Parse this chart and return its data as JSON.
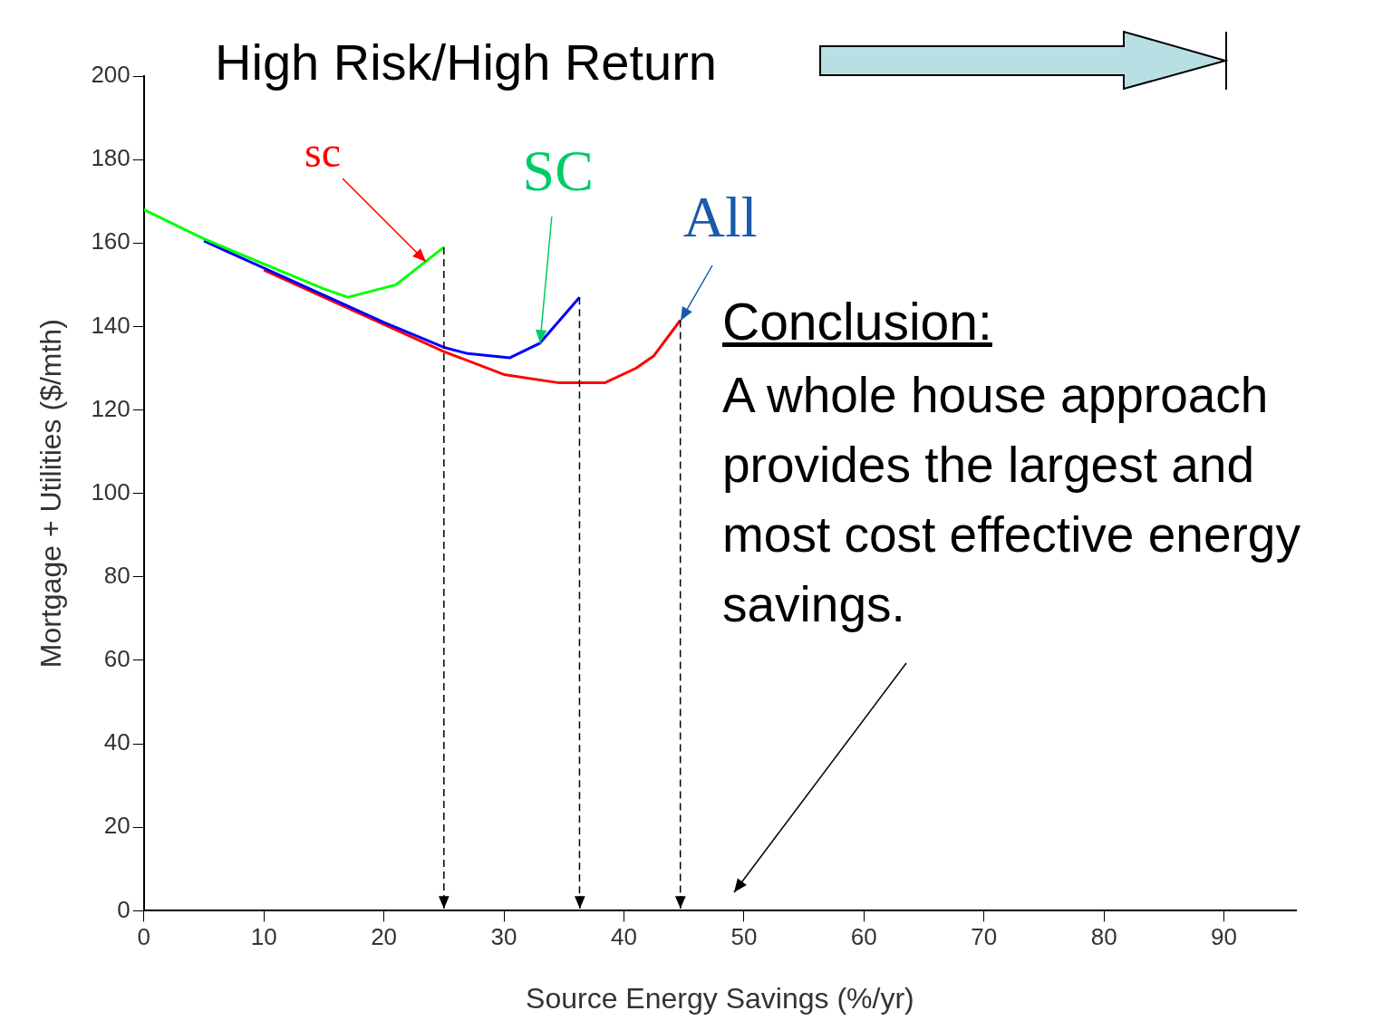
{
  "chart_data": {
    "type": "line",
    "xlabel": "Source Energy Savings (%/yr)",
    "ylabel": "Mortgage + Utilities ($/mth)",
    "xlim": [
      0,
      96
    ],
    "xticks": [
      0,
      10,
      20,
      30,
      40,
      50,
      60,
      70,
      80,
      90
    ],
    "ylim": [
      0,
      200
    ],
    "yticks": [
      0,
      20,
      40,
      60,
      80,
      100,
      120,
      140,
      160,
      180,
      200
    ],
    "grid": false,
    "legend": false,
    "marker": "none",
    "line_style": "solid",
    "series": [
      {
        "color": "#00ff00",
        "x": [
          0,
          5,
          10,
          15,
          17,
          21,
          25
        ],
        "values": [
          168,
          161,
          155,
          149,
          147,
          150,
          159
        ]
      },
      {
        "color": "#0000ff",
        "x": [
          5,
          10,
          15,
          20,
          25,
          27,
          30.5,
          33,
          36.3
        ],
        "values": [
          160.5,
          154,
          147.5,
          141,
          135,
          133.5,
          132.5,
          136,
          147
        ]
      },
      {
        "color": "#ff0000",
        "x": [
          10,
          15,
          20,
          25,
          30,
          34.6,
          38.4,
          41,
          42.5,
          44.7
        ],
        "values": [
          153.5,
          147,
          140.5,
          134,
          128.5,
          126.5,
          126.5,
          130,
          133,
          141.5
        ]
      }
    ],
    "ref_lines": [
      {
        "axis": "x",
        "value": 25,
        "line_style": "dashed",
        "color": "#000000"
      },
      {
        "axis": "x",
        "value": 36.3,
        "line_style": "dashed",
        "color": "#000000"
      },
      {
        "axis": "x",
        "value": 44.7,
        "line_style": "dashed",
        "color": "#000000"
      }
    ],
    "annotations": [
      "High Risk/High Return",
      {
        "text": "sc",
        "x": 23.5,
        "y": 155.6
      },
      {
        "text": "SC",
        "x": 33,
        "y": 136
      },
      {
        "text": "All",
        "x": 44.7,
        "y": 141.5
      },
      "Conclusion:",
      "A whole house approach provides the largest and most cost effective energy savings."
    ]
  }
}
